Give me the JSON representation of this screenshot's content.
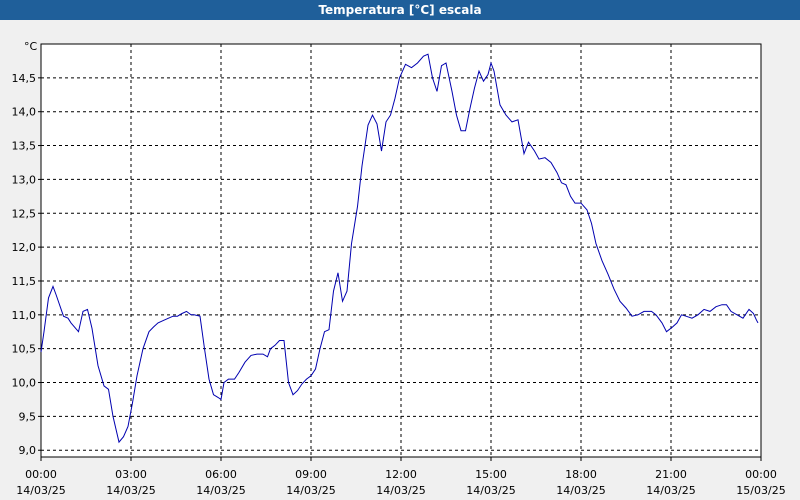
{
  "window": {
    "title": "Temperatura [°C] escala"
  },
  "chart_data": {
    "type": "line",
    "title": "Temperatura [°C] escala",
    "ylabel": "°C",
    "xlabel": "",
    "xlim_hours": [
      0,
      24
    ],
    "ylim": [
      8.9,
      15.0
    ],
    "grid": true,
    "line_color": "#0000b0",
    "y_ticks": [
      {
        "value": 9.0,
        "label": "9,0"
      },
      {
        "value": 9.5,
        "label": "9,5"
      },
      {
        "value": 10.0,
        "label": "10,0"
      },
      {
        "value": 10.5,
        "label": "10,5"
      },
      {
        "value": 11.0,
        "label": "11,0"
      },
      {
        "value": 11.5,
        "label": "11,5"
      },
      {
        "value": 12.0,
        "label": "12,0"
      },
      {
        "value": 12.5,
        "label": "12,5"
      },
      {
        "value": 13.0,
        "label": "13,0"
      },
      {
        "value": 13.5,
        "label": "13,5"
      },
      {
        "value": 14.0,
        "label": "14,0"
      },
      {
        "value": 14.5,
        "label": "14,5"
      }
    ],
    "x_ticks": [
      {
        "hour": 0,
        "time": "00:00",
        "date": "14/03/25"
      },
      {
        "hour": 3,
        "time": "03:00",
        "date": "14/03/25"
      },
      {
        "hour": 6,
        "time": "06:00",
        "date": "14/03/25"
      },
      {
        "hour": 9,
        "time": "09:00",
        "date": "14/03/25"
      },
      {
        "hour": 12,
        "time": "12:00",
        "date": "14/03/25"
      },
      {
        "hour": 15,
        "time": "15:00",
        "date": "14/03/25"
      },
      {
        "hour": 18,
        "time": "18:00",
        "date": "14/03/25"
      },
      {
        "hour": 21,
        "time": "21:00",
        "date": "14/03/25"
      },
      {
        "hour": 24,
        "time": "00:00",
        "date": "15/03/25"
      }
    ],
    "series": [
      {
        "points": [
          [
            0.0,
            10.45
          ],
          [
            0.1,
            10.75
          ],
          [
            0.25,
            11.25
          ],
          [
            0.4,
            11.42
          ],
          [
            0.5,
            11.3
          ],
          [
            0.75,
            10.98
          ],
          [
            0.9,
            10.95
          ],
          [
            1.0,
            10.88
          ],
          [
            1.25,
            10.75
          ],
          [
            1.4,
            11.05
          ],
          [
            1.55,
            11.08
          ],
          [
            1.7,
            10.8
          ],
          [
            1.9,
            10.25
          ],
          [
            2.1,
            9.95
          ],
          [
            2.25,
            9.9
          ],
          [
            2.4,
            9.5
          ],
          [
            2.6,
            9.12
          ],
          [
            2.75,
            9.2
          ],
          [
            2.9,
            9.35
          ],
          [
            3.05,
            9.7
          ],
          [
            3.2,
            10.1
          ],
          [
            3.4,
            10.5
          ],
          [
            3.6,
            10.75
          ],
          [
            3.75,
            10.82
          ],
          [
            3.9,
            10.88
          ],
          [
            4.1,
            10.92
          ],
          [
            4.25,
            10.95
          ],
          [
            4.4,
            10.98
          ],
          [
            4.55,
            10.98
          ],
          [
            4.7,
            11.02
          ],
          [
            4.85,
            11.05
          ],
          [
            5.0,
            11.0
          ],
          [
            5.1,
            11.0
          ],
          [
            5.3,
            10.98
          ],
          [
            5.45,
            10.5
          ],
          [
            5.6,
            10.05
          ],
          [
            5.75,
            9.82
          ],
          [
            5.9,
            9.78
          ],
          [
            6.0,
            9.75
          ],
          [
            6.1,
            10.0
          ],
          [
            6.25,
            10.05
          ],
          [
            6.45,
            10.05
          ],
          [
            6.6,
            10.15
          ],
          [
            6.8,
            10.3
          ],
          [
            7.0,
            10.4
          ],
          [
            7.2,
            10.42
          ],
          [
            7.4,
            10.42
          ],
          [
            7.55,
            10.38
          ],
          [
            7.65,
            10.5
          ],
          [
            7.8,
            10.55
          ],
          [
            7.95,
            10.62
          ],
          [
            8.1,
            10.62
          ],
          [
            8.25,
            10.0
          ],
          [
            8.4,
            9.82
          ],
          [
            8.55,
            9.88
          ],
          [
            8.7,
            9.98
          ],
          [
            8.85,
            10.05
          ],
          [
            9.0,
            10.1
          ],
          [
            9.15,
            10.2
          ],
          [
            9.3,
            10.5
          ],
          [
            9.45,
            10.75
          ],
          [
            9.6,
            10.78
          ],
          [
            9.75,
            11.35
          ],
          [
            9.9,
            11.62
          ],
          [
            10.05,
            11.2
          ],
          [
            10.2,
            11.35
          ],
          [
            10.35,
            12.05
          ],
          [
            10.55,
            12.6
          ],
          [
            10.7,
            13.2
          ],
          [
            10.9,
            13.8
          ],
          [
            11.05,
            13.95
          ],
          [
            11.2,
            13.82
          ],
          [
            11.35,
            13.42
          ],
          [
            11.5,
            13.85
          ],
          [
            11.65,
            13.95
          ],
          [
            11.8,
            14.2
          ],
          [
            11.95,
            14.5
          ],
          [
            12.15,
            14.7
          ],
          [
            12.35,
            14.65
          ],
          [
            12.55,
            14.72
          ],
          [
            12.75,
            14.82
          ],
          [
            12.9,
            14.85
          ],
          [
            13.05,
            14.5
          ],
          [
            13.2,
            14.3
          ],
          [
            13.35,
            14.68
          ],
          [
            13.5,
            14.72
          ],
          [
            13.7,
            14.3
          ],
          [
            13.85,
            13.95
          ],
          [
            14.0,
            13.72
          ],
          [
            14.15,
            13.72
          ],
          [
            14.3,
            14.05
          ],
          [
            14.45,
            14.35
          ],
          [
            14.6,
            14.6
          ],
          [
            14.75,
            14.45
          ],
          [
            14.9,
            14.55
          ],
          [
            15.0,
            14.72
          ],
          [
            15.1,
            14.6
          ],
          [
            15.3,
            14.1
          ],
          [
            15.5,
            13.95
          ],
          [
            15.7,
            13.85
          ],
          [
            15.9,
            13.88
          ],
          [
            16.1,
            13.38
          ],
          [
            16.25,
            13.55
          ],
          [
            16.45,
            13.42
          ],
          [
            16.6,
            13.3
          ],
          [
            16.8,
            13.32
          ],
          [
            17.0,
            13.25
          ],
          [
            17.2,
            13.1
          ],
          [
            17.35,
            12.95
          ],
          [
            17.5,
            12.92
          ],
          [
            17.65,
            12.75
          ],
          [
            17.8,
            12.65
          ],
          [
            18.0,
            12.65
          ],
          [
            18.2,
            12.55
          ],
          [
            18.35,
            12.35
          ],
          [
            18.5,
            12.05
          ],
          [
            18.7,
            11.8
          ],
          [
            18.9,
            11.6
          ],
          [
            19.1,
            11.38
          ],
          [
            19.3,
            11.2
          ],
          [
            19.5,
            11.1
          ],
          [
            19.7,
            10.98
          ],
          [
            19.9,
            11.0
          ],
          [
            20.1,
            11.05
          ],
          [
            20.35,
            11.05
          ],
          [
            20.5,
            11.0
          ],
          [
            20.7,
            10.88
          ],
          [
            20.85,
            10.75
          ],
          [
            21.05,
            10.82
          ],
          [
            21.2,
            10.88
          ],
          [
            21.35,
            11.0
          ],
          [
            21.5,
            10.98
          ],
          [
            21.7,
            10.95
          ],
          [
            21.9,
            11.0
          ],
          [
            22.1,
            11.08
          ],
          [
            22.3,
            11.05
          ],
          [
            22.5,
            11.12
          ],
          [
            22.7,
            11.15
          ],
          [
            22.85,
            11.15
          ],
          [
            23.0,
            11.05
          ],
          [
            23.2,
            11.0
          ],
          [
            23.4,
            10.95
          ],
          [
            23.6,
            11.08
          ],
          [
            23.75,
            11.02
          ],
          [
            23.85,
            10.92
          ],
          [
            23.9,
            10.88
          ]
        ]
      }
    ]
  }
}
